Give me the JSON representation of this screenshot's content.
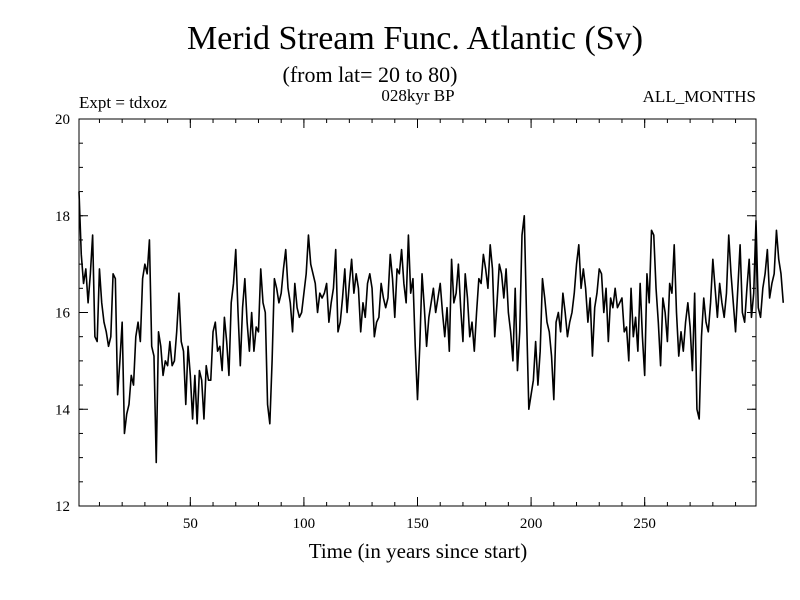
{
  "chart_data": {
    "type": "line",
    "title": "Merid Stream Func. Atlantic (Sv)",
    "subtitle": "(from lat= 20 to 80)",
    "experiment": "Expt = tdxoz",
    "period": "028kyr BP",
    "months": "ALL_MONTHS",
    "xlabel": "Time (in years since start)",
    "ylabel": "",
    "xlim": [
      1,
      299
    ],
    "ylim": [
      12,
      20
    ],
    "xticks": [
      50,
      100,
      150,
      200,
      250
    ],
    "yticks": [
      12,
      14,
      16,
      18,
      20
    ],
    "grid": false,
    "line_color": "#000000",
    "series": [
      {
        "values": [
          18.5,
          17.2,
          16.6,
          16.9,
          16.2,
          16.8,
          17.6,
          15.5,
          15.4,
          16.9,
          16.2,
          15.8,
          15.6,
          15.3,
          15.5,
          16.8,
          16.7,
          14.3,
          15.0,
          15.8,
          13.5,
          13.9,
          14.1,
          14.7,
          14.5,
          15.5,
          15.8,
          15.4,
          16.7,
          17.0,
          16.8,
          17.5,
          15.3,
          15.1,
          12.9,
          15.6,
          15.3,
          14.7,
          15.0,
          14.9,
          15.4,
          14.9,
          15.0,
          15.6,
          16.4,
          15.4,
          15.2,
          14.1,
          15.3,
          14.7,
          13.8,
          14.7,
          13.7,
          14.8,
          14.6,
          13.8,
          14.9,
          14.6,
          14.6,
          15.6,
          15.8,
          15.2,
          15.3,
          14.8,
          15.9,
          15.4,
          14.7,
          16.2,
          16.6,
          17.3,
          16.0,
          14.9,
          16.1,
          16.7,
          15.8,
          15.2,
          16.0,
          15.2,
          15.7,
          15.6,
          16.9,
          16.2,
          16.0,
          14.1,
          13.7,
          15.0,
          16.7,
          16.5,
          16.2,
          16.4,
          16.9,
          17.3,
          16.5,
          16.2,
          15.6,
          16.6,
          16.1,
          15.9,
          16.0,
          16.4,
          16.8,
          17.6,
          17.0,
          16.8,
          16.6,
          16.0,
          16.4,
          16.3,
          16.4,
          16.6,
          15.8,
          16.2,
          16.5,
          17.3,
          15.6,
          15.8,
          16.3,
          16.9,
          16.0,
          16.6,
          17.1,
          16.4,
          16.8,
          16.5,
          15.6,
          16.2,
          15.9,
          16.6,
          16.8,
          16.5,
          15.5,
          15.8,
          15.9,
          16.6,
          16.3,
          16.1,
          16.3,
          17.2,
          16.7,
          15.9,
          16.9,
          16.8,
          17.3,
          16.6,
          16.2,
          17.6,
          16.4,
          16.7,
          15.3,
          14.2,
          15.3,
          16.8,
          16.1,
          15.3,
          15.9,
          16.2,
          16.5,
          16.0,
          16.3,
          16.6,
          16.0,
          15.5,
          16.1,
          15.2,
          17.1,
          16.2,
          16.4,
          17.0,
          16.1,
          15.4,
          16.8,
          16.3,
          15.5,
          15.8,
          15.2,
          16.0,
          16.7,
          16.6,
          17.2,
          16.9,
          16.5,
          17.4,
          16.9,
          15.5,
          16.2,
          17.0,
          16.8,
          16.3,
          16.9,
          16.0,
          15.6,
          15.0,
          16.5,
          14.8,
          15.6,
          17.6,
          18.0,
          15.9,
          14.0,
          14.3,
          14.6,
          15.4,
          14.5,
          15.2,
          16.7,
          16.3,
          15.8,
          15.6,
          15.1,
          14.2,
          15.8,
          16.0,
          15.6,
          16.4,
          16.0,
          15.5,
          15.8,
          16.0,
          16.4,
          17.0,
          17.4,
          16.5,
          16.9,
          16.5,
          15.8,
          16.3,
          15.1,
          16.1,
          16.4,
          16.9,
          16.8,
          16.0,
          16.5,
          15.4,
          16.3,
          16.1,
          16.5,
          16.1,
          16.2,
          16.3,
          15.6,
          15.7,
          15.0,
          16.5,
          15.5,
          15.9,
          15.2,
          16.6,
          15.5,
          14.7,
          16.8,
          16.2,
          17.7,
          17.6,
          16.5,
          15.8,
          14.9,
          16.3,
          16.0,
          15.4,
          16.6,
          16.4,
          17.4,
          16.0,
          15.1,
          15.6,
          15.2,
          15.8,
          16.2,
          15.7,
          14.8,
          16.4,
          14.0,
          13.8,
          15.5,
          16.3,
          15.8,
          15.6,
          16.2,
          17.1,
          16.5,
          15.9,
          16.6,
          16.2,
          15.9,
          16.4,
          17.6,
          16.8,
          16.2,
          15.6,
          16.5,
          17.4,
          16.0,
          15.8,
          16.5,
          17.1,
          15.9,
          16.4,
          17.9,
          16.1,
          15.9,
          16.5,
          16.8,
          17.3,
          16.3,
          16.6,
          16.8,
          17.7,
          17.1,
          16.8,
          16.2
        ]
      }
    ]
  }
}
